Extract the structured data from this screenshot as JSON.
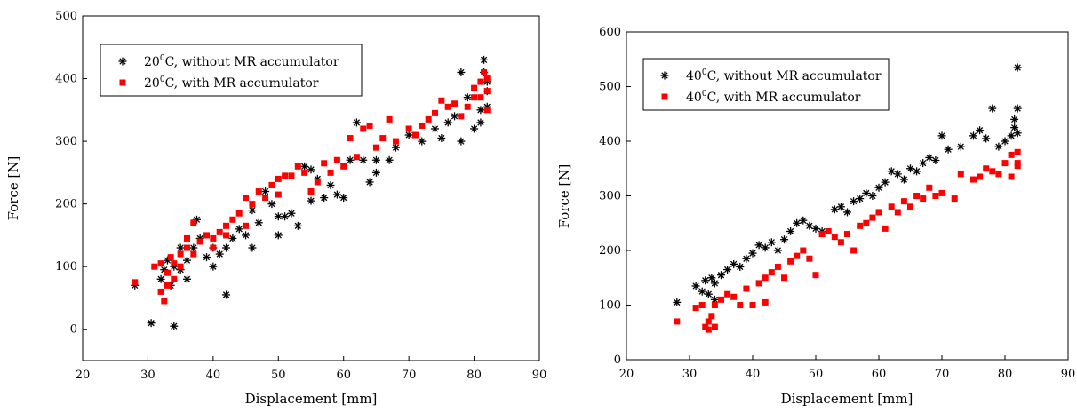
{
  "chart_data": [
    {
      "type": "scatter",
      "xlabel": "Displacement [mm]",
      "ylabel": "Force [N]",
      "xlim": [
        20,
        90
      ],
      "ylim": [
        -50,
        500
      ],
      "xticks": [
        "20",
        "30",
        "40",
        "50",
        "60",
        "70",
        "80",
        "90"
      ],
      "yticks": [
        "0",
        "100",
        "200",
        "300",
        "400",
        "500"
      ],
      "legend_position": "top-left",
      "series": [
        {
          "name_main": "20",
          "name_sup": "0",
          "name_rest": "C, without MR accumulator",
          "marker": "asterisk",
          "color": "#000000",
          "points": [
            [
              28,
              70
            ],
            [
              30.5,
              10
            ],
            [
              32,
              80
            ],
            [
              32.5,
              95
            ],
            [
              33,
              110
            ],
            [
              33.5,
              70
            ],
            [
              34,
              5
            ],
            [
              34,
              100
            ],
            [
              35,
              130
            ],
            [
              35,
              95
            ],
            [
              36,
              80
            ],
            [
              36,
              110
            ],
            [
              37,
              130
            ],
            [
              37.5,
              175
            ],
            [
              38,
              145
            ],
            [
              39,
              115
            ],
            [
              40,
              100
            ],
            [
              40,
              130
            ],
            [
              41,
              120
            ],
            [
              42,
              55
            ],
            [
              42,
              130
            ],
            [
              43,
              145
            ],
            [
              44,
              160
            ],
            [
              45,
              150
            ],
            [
              46,
              130
            ],
            [
              46,
              190
            ],
            [
              47,
              170
            ],
            [
              48,
              220
            ],
            [
              49,
              200
            ],
            [
              50,
              150
            ],
            [
              50,
              180
            ],
            [
              51,
              180
            ],
            [
              52,
              185
            ],
            [
              53,
              165
            ],
            [
              54,
              260
            ],
            [
              55,
              205
            ],
            [
              55,
              255
            ],
            [
              56,
              240
            ],
            [
              57,
              210
            ],
            [
              58,
              230
            ],
            [
              59,
              215
            ],
            [
              60,
              210
            ],
            [
              61,
              270
            ],
            [
              62,
              330
            ],
            [
              63,
              270
            ],
            [
              64,
              235
            ],
            [
              65,
              250
            ],
            [
              65,
              270
            ],
            [
              67,
              270
            ],
            [
              68,
              290
            ],
            [
              70,
              310
            ],
            [
              72,
              300
            ],
            [
              74,
              320
            ],
            [
              75,
              305
            ],
            [
              76,
              330
            ],
            [
              77,
              340
            ],
            [
              78,
              300
            ],
            [
              78,
              410
            ],
            [
              79,
              370
            ],
            [
              80,
              320
            ],
            [
              81,
              350
            ],
            [
              81,
              330
            ],
            [
              81.5,
              430
            ],
            [
              81.5,
              410
            ],
            [
              82,
              380
            ],
            [
              82,
              355
            ],
            [
              82,
              395
            ]
          ]
        },
        {
          "name_main": "20",
          "name_sup": "0",
          "name_rest": "C, with MR accumulator",
          "marker": "square",
          "color": "#ff0000",
          "points": [
            [
              28,
              75
            ],
            [
              31,
              100
            ],
            [
              32,
              105
            ],
            [
              32,
              60
            ],
            [
              32.5,
              45
            ],
            [
              33,
              90
            ],
            [
              33,
              70
            ],
            [
              33.5,
              115
            ],
            [
              34,
              80
            ],
            [
              34,
              105
            ],
            [
              35,
              120
            ],
            [
              35,
              100
            ],
            [
              36,
              130
            ],
            [
              36,
              145
            ],
            [
              37,
              170
            ],
            [
              37,
              120
            ],
            [
              38,
              140
            ],
            [
              39,
              150
            ],
            [
              40,
              130
            ],
            [
              40,
              145
            ],
            [
              41,
              155
            ],
            [
              42,
              150
            ],
            [
              42,
              165
            ],
            [
              43,
              175
            ],
            [
              44,
              185
            ],
            [
              45,
              165
            ],
            [
              45,
              210
            ],
            [
              46,
              200
            ],
            [
              47,
              220
            ],
            [
              48,
              210
            ],
            [
              49,
              230
            ],
            [
              50,
              240
            ],
            [
              50,
              215
            ],
            [
              51,
              245
            ],
            [
              52,
              245
            ],
            [
              53,
              260
            ],
            [
              54,
              250
            ],
            [
              55,
              220
            ],
            [
              56,
              235
            ],
            [
              57,
              265
            ],
            [
              58,
              250
            ],
            [
              59,
              270
            ],
            [
              60,
              260
            ],
            [
              61,
              305
            ],
            [
              62,
              275
            ],
            [
              63,
              320
            ],
            [
              64,
              325
            ],
            [
              65,
              290
            ],
            [
              66,
              305
            ],
            [
              67,
              335
            ],
            [
              68,
              300
            ],
            [
              70,
              320
            ],
            [
              71,
              310
            ],
            [
              72,
              325
            ],
            [
              73,
              335
            ],
            [
              74,
              345
            ],
            [
              75,
              365
            ],
            [
              76,
              355
            ],
            [
              77,
              360
            ],
            [
              78,
              340
            ],
            [
              79,
              355
            ],
            [
              80,
              385
            ],
            [
              80,
              370
            ],
            [
              81,
              395
            ],
            [
              81,
              370
            ],
            [
              81.5,
              410
            ],
            [
              82,
              380
            ],
            [
              82,
              350
            ],
            [
              82,
              400
            ]
          ]
        }
      ]
    },
    {
      "type": "scatter",
      "xlabel": "Displacement [mm]",
      "ylabel": "Force [N]",
      "xlim": [
        20,
        90
      ],
      "ylim": [
        0,
        600
      ],
      "xticks": [
        "20",
        "30",
        "40",
        "50",
        "60",
        "70",
        "80",
        "90"
      ],
      "yticks": [
        "0",
        "100",
        "200",
        "300",
        "400",
        "500",
        "600"
      ],
      "legend_position": "top-left",
      "series": [
        {
          "name_main": "40",
          "name_sup": "0",
          "name_rest": "C, without MR accumulator",
          "marker": "asterisk",
          "color": "#000000",
          "points": [
            [
              28,
              105
            ],
            [
              31,
              135
            ],
            [
              32,
              125
            ],
            [
              32.5,
              145
            ],
            [
              33,
              120
            ],
            [
              33.5,
              150
            ],
            [
              34,
              140
            ],
            [
              34,
              110
            ],
            [
              35,
              155
            ],
            [
              36,
              165
            ],
            [
              37,
              175
            ],
            [
              38,
              170
            ],
            [
              39,
              185
            ],
            [
              40,
              195
            ],
            [
              41,
              210
            ],
            [
              42,
              205
            ],
            [
              43,
              215
            ],
            [
              44,
              200
            ],
            [
              45,
              220
            ],
            [
              46,
              235
            ],
            [
              47,
              250
            ],
            [
              48,
              255
            ],
            [
              49,
              245
            ],
            [
              50,
              240
            ],
            [
              51,
              235
            ],
            [
              53,
              275
            ],
            [
              54,
              280
            ],
            [
              55,
              270
            ],
            [
              56,
              290
            ],
            [
              57,
              295
            ],
            [
              58,
              305
            ],
            [
              59,
              300
            ],
            [
              60,
              315
            ],
            [
              61,
              325
            ],
            [
              62,
              345
            ],
            [
              63,
              340
            ],
            [
              64,
              330
            ],
            [
              65,
              350
            ],
            [
              66,
              345
            ],
            [
              67,
              360
            ],
            [
              68,
              370
            ],
            [
              69,
              365
            ],
            [
              70,
              410
            ],
            [
              71,
              385
            ],
            [
              73,
              390
            ],
            [
              75,
              410
            ],
            [
              76,
              420
            ],
            [
              77,
              405
            ],
            [
              78,
              460
            ],
            [
              79,
              390
            ],
            [
              80,
              400
            ],
            [
              81,
              410
            ],
            [
              81.5,
              440
            ],
            [
              81.5,
              425
            ],
            [
              82,
              535
            ],
            [
              82,
              460
            ],
            [
              82,
              415
            ]
          ]
        },
        {
          "name_main": "40",
          "name_sup": "0",
          "name_rest": "C, with MR accumulator",
          "marker": "square",
          "color": "#ff0000",
          "points": [
            [
              28,
              70
            ],
            [
              31,
              95
            ],
            [
              32,
              100
            ],
            [
              32.5,
              60
            ],
            [
              33,
              70
            ],
            [
              33,
              55
            ],
            [
              33.5,
              80
            ],
            [
              34,
              60
            ],
            [
              34,
              100
            ],
            [
              35,
              110
            ],
            [
              36,
              120
            ],
            [
              37,
              115
            ],
            [
              38,
              100
            ],
            [
              39,
              130
            ],
            [
              40,
              100
            ],
            [
              41,
              140
            ],
            [
              42,
              105
            ],
            [
              42,
              150
            ],
            [
              43,
              160
            ],
            [
              44,
              170
            ],
            [
              45,
              150
            ],
            [
              46,
              180
            ],
            [
              47,
              190
            ],
            [
              48,
              200
            ],
            [
              49,
              185
            ],
            [
              50,
              155
            ],
            [
              51,
              230
            ],
            [
              52,
              235
            ],
            [
              53,
              225
            ],
            [
              54,
              215
            ],
            [
              55,
              230
            ],
            [
              56,
              200
            ],
            [
              57,
              245
            ],
            [
              58,
              250
            ],
            [
              59,
              260
            ],
            [
              60,
              270
            ],
            [
              61,
              240
            ],
            [
              62,
              280
            ],
            [
              63,
              270
            ],
            [
              64,
              290
            ],
            [
              65,
              280
            ],
            [
              66,
              300
            ],
            [
              67,
              295
            ],
            [
              68,
              315
            ],
            [
              69,
              300
            ],
            [
              70,
              305
            ],
            [
              72,
              295
            ],
            [
              73,
              340
            ],
            [
              75,
              330
            ],
            [
              76,
              335
            ],
            [
              77,
              350
            ],
            [
              78,
              345
            ],
            [
              79,
              340
            ],
            [
              80,
              360
            ],
            [
              81,
              375
            ],
            [
              81,
              335
            ],
            [
              82,
              380
            ],
            [
              82,
              360
            ],
            [
              82,
              355
            ]
          ]
        }
      ]
    }
  ]
}
